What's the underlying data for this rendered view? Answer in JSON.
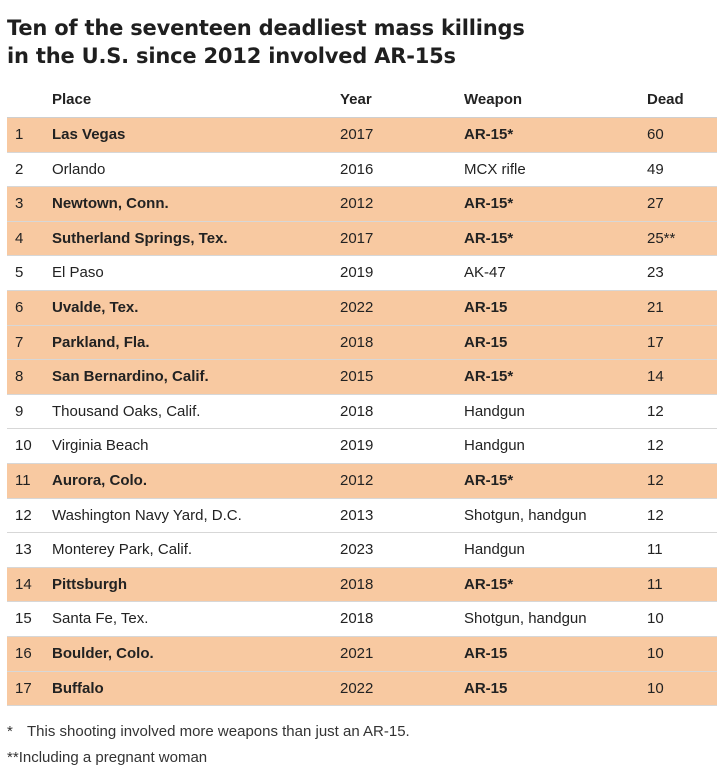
{
  "title_line1": "Ten of the seventeen deadliest mass killings",
  "title_line2": "in the U.S. since 2012 involved AR-15s",
  "chart_data": {
    "type": "table",
    "columns": [
      "",
      "Place",
      "Year",
      "Weapon",
      "Dead"
    ],
    "highlight_color": "#f8c9a1",
    "rows": [
      {
        "rank": "1",
        "place": "Las Vegas",
        "year": "2017",
        "weapon": "AR-15*",
        "dead": "60",
        "highlight": true
      },
      {
        "rank": "2",
        "place": "Orlando",
        "year": "2016",
        "weapon": "MCX rifle",
        "dead": "49",
        "highlight": false
      },
      {
        "rank": "3",
        "place": "Newtown, Conn.",
        "year": "2012",
        "weapon": "AR-15*",
        "dead": "27",
        "highlight": true
      },
      {
        "rank": "4",
        "place": "Sutherland Springs, Tex.",
        "year": "2017",
        "weapon": "AR-15*",
        "dead": "25**",
        "highlight": true
      },
      {
        "rank": "5",
        "place": "El Paso",
        "year": "2019",
        "weapon": "AK-47",
        "dead": "23",
        "highlight": false
      },
      {
        "rank": "6",
        "place": "Uvalde, Tex.",
        "year": "2022",
        "weapon": "AR-15",
        "dead": "21",
        "highlight": true
      },
      {
        "rank": "7",
        "place": "Parkland, Fla.",
        "year": "2018",
        "weapon": "AR-15",
        "dead": "17",
        "highlight": true
      },
      {
        "rank": "8",
        "place": "San Bernardino, Calif.",
        "year": "2015",
        "weapon": "AR-15*",
        "dead": "14",
        "highlight": true
      },
      {
        "rank": "9",
        "place": "Thousand Oaks, Calif.",
        "year": "2018",
        "weapon": "Handgun",
        "dead": "12",
        "highlight": false
      },
      {
        "rank": "10",
        "place": "Virginia Beach",
        "year": "2019",
        "weapon": "Handgun",
        "dead": "12",
        "highlight": false
      },
      {
        "rank": "11",
        "place": "Aurora, Colo.",
        "year": "2012",
        "weapon": "AR-15*",
        "dead": "12",
        "highlight": true
      },
      {
        "rank": "12",
        "place": "Washington Navy Yard, D.C.",
        "year": "2013",
        "weapon": "Shotgun, handgun",
        "dead": "12",
        "highlight": false
      },
      {
        "rank": "13",
        "place": "Monterey Park, Calif.",
        "year": "2023",
        "weapon": "Handgun",
        "dead": "11",
        "highlight": false
      },
      {
        "rank": "14",
        "place": "Pittsburgh",
        "year": "2018",
        "weapon": "AR-15*",
        "dead": "11",
        "highlight": true
      },
      {
        "rank": "15",
        "place": "Santa Fe, Tex.",
        "year": "2018",
        "weapon": "Shotgun, handgun",
        "dead": "10",
        "highlight": false
      },
      {
        "rank": "16",
        "place": "Boulder, Colo.",
        "year": "2021",
        "weapon": "AR-15",
        "dead": "10",
        "highlight": true
      },
      {
        "rank": "17",
        "place": "Buffalo",
        "year": "2022",
        "weapon": "AR-15",
        "dead": "10",
        "highlight": true
      }
    ]
  },
  "notes": {
    "note1_mark": "*",
    "note1_text": "This shooting involved more weapons than just an AR-15.",
    "note2_mark": "**",
    "note2_text": "Including a pregnant woman"
  }
}
